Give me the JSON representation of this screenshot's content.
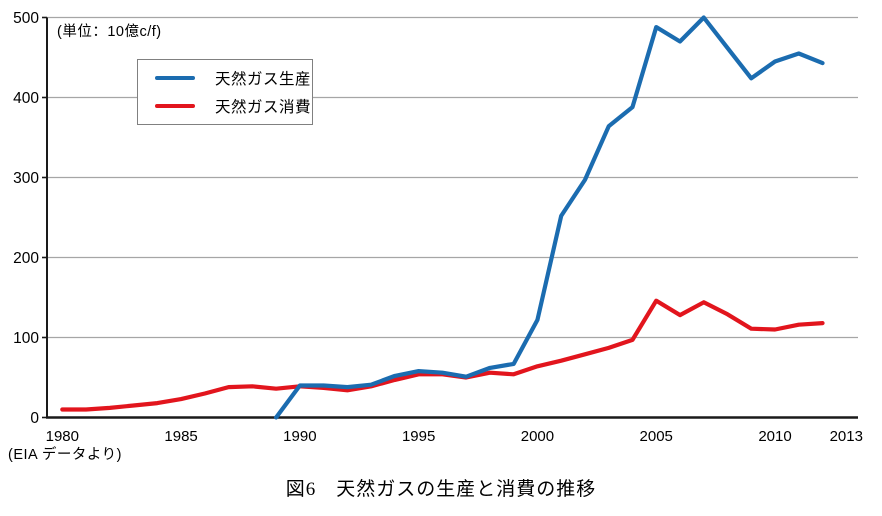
{
  "figure": {
    "unit_label": "(単位：10億c/f)",
    "source_note": "(EIA データより)",
    "caption": "図6　天然ガスの生産と消費の推移",
    "colors": {
      "production": "#1B6CB0",
      "consumption": "#E2151D",
      "grid": "#A6A6A6",
      "axis": "#1A1A1A",
      "legend_border": "#808080",
      "text": "#000000"
    }
  },
  "legend": {
    "items": [
      {
        "key": "production",
        "label": "天然ガス生産"
      },
      {
        "key": "consumption",
        "label": "天然ガス消費"
      }
    ]
  },
  "chart_data": {
    "type": "line",
    "title": "図6 天然ガスの生産と消費の推移",
    "unit": "10億c/f",
    "xlabel": "",
    "ylabel": "",
    "ylim": [
      0,
      500
    ],
    "yticks": [
      0,
      100,
      200,
      300,
      400,
      500
    ],
    "xticks": [
      1980,
      1985,
      1990,
      1995,
      2000,
      2005,
      2010,
      2013
    ],
    "xlim": [
      1980,
      2013.5
    ],
    "grid": "horizontal",
    "legend_position": "top-left-inset",
    "series": [
      {
        "name": "天然ガス生産",
        "key": "production",
        "color": "#1B6CB0",
        "x": [
          1989,
          1990,
          1991,
          1992,
          1993,
          1994,
          1995,
          1996,
          1997,
          1998,
          1999,
          2000,
          2001,
          2002,
          2003,
          2004,
          2005,
          2006,
          2007,
          2008,
          2009,
          2010,
          2011,
          2012
        ],
        "values": [
          0,
          40,
          40,
          38,
          41,
          52,
          58,
          56,
          51,
          62,
          67,
          122,
          252,
          297,
          364,
          388,
          488,
          470,
          500,
          462,
          424,
          445,
          455,
          443
        ]
      },
      {
        "name": "天然ガス消費",
        "key": "consumption",
        "color": "#E2151D",
        "x": [
          1980,
          1981,
          1982,
          1983,
          1984,
          1985,
          1986,
          1987,
          1988,
          1989,
          1990,
          1991,
          1992,
          1993,
          1994,
          1995,
          1996,
          1997,
          1998,
          1999,
          2000,
          2001,
          2002,
          2003,
          2004,
          2005,
          2006,
          2007,
          2008,
          2009,
          2010,
          2011,
          2012
        ],
        "values": [
          10,
          10,
          12,
          15,
          18,
          23,
          30,
          38,
          39,
          36,
          39,
          37,
          34,
          39,
          47,
          54,
          54,
          50,
          56,
          54,
          64,
          71,
          79,
          87,
          97,
          146,
          128,
          144,
          129,
          111,
          110,
          116,
          118
        ]
      }
    ]
  }
}
